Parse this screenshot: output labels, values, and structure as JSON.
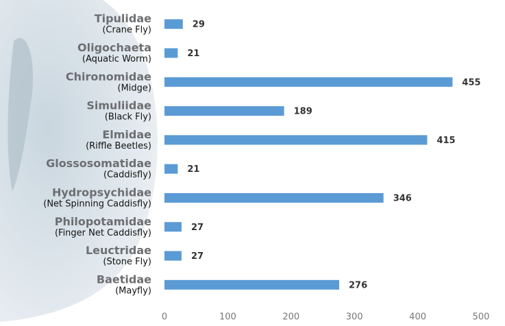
{
  "chart_data": {
    "type": "bar",
    "orientation": "horizontal",
    "categories": [
      "Tipulidae",
      "Oligochaeta",
      "Chironomidae",
      "Simuliidae",
      "Elmidae",
      "Glossosomatidae",
      "Hydropsychidae",
      "Philopotamidae",
      "Leuctridae",
      "Baetidae"
    ],
    "common_names": [
      "(Crane Fly)",
      "(Aquatic Worm)",
      "(Midge)",
      "(Black Fly)",
      "(Riffle Beetles)",
      "(Caddisfly)",
      "(Net Spinning Caddisfly)",
      "(Finger Net Caddisfly)",
      "(Stone Fly)",
      "(Mayfly)"
    ],
    "values": [
      29,
      21,
      455,
      189,
      415,
      21,
      346,
      27,
      27,
      276
    ],
    "color": "#5b9bd5",
    "xlim": [
      0,
      500
    ],
    "xticks": [
      0,
      100,
      200,
      300,
      400,
      500
    ],
    "grid": false
  }
}
